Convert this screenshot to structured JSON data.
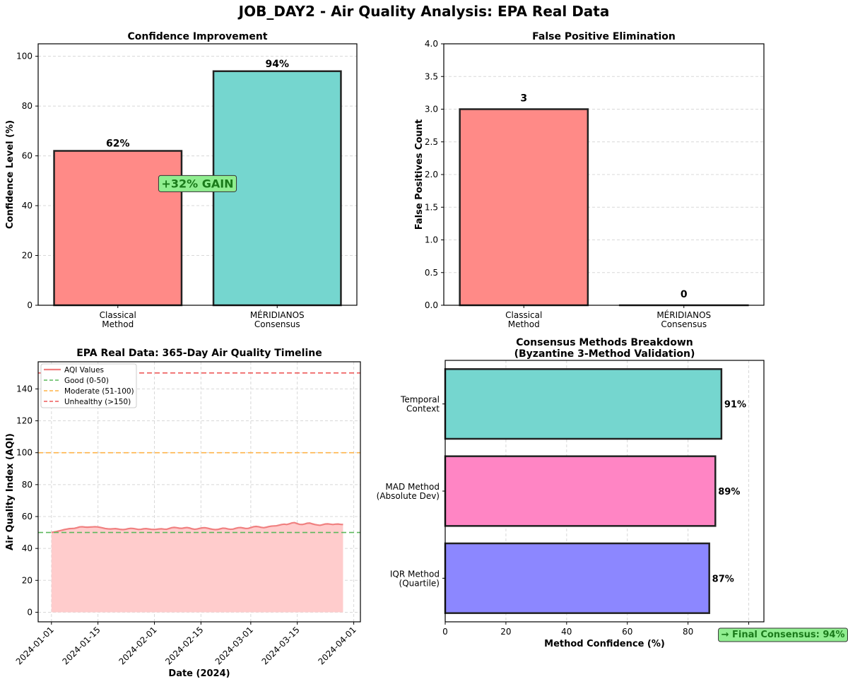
{
  "figure_title": "JOB_DAY2 - Air Quality Analysis: EPA Real Data",
  "chart_data": [
    {
      "type": "bar",
      "title": "Confidence Improvement",
      "ylabel": "Confidence Level (%)",
      "xlabel": "",
      "categories": [
        "Classical\nMethod",
        "MÉRIDIANOS\nConsensus"
      ],
      "values": [
        62,
        94
      ],
      "value_labels": [
        "62%",
        "94%"
      ],
      "colors": [
        "#ff8a87",
        "#75d6cf"
      ],
      "ylim": [
        0,
        105
      ],
      "yticks": [
        0,
        20,
        40,
        60,
        80,
        100
      ],
      "annotation": "+32% GAIN",
      "grid": true
    },
    {
      "type": "bar",
      "title": "False Positive Elimination",
      "ylabel": "False Positives Count",
      "xlabel": "",
      "categories": [
        "Classical\nMethod",
        "MÉRIDIANOS\nConsensus"
      ],
      "values": [
        3,
        0
      ],
      "value_labels": [
        "3",
        "0"
      ],
      "colors": [
        "#ff8a87",
        "#75d6cf"
      ],
      "ylim": [
        0,
        4
      ],
      "yticks": [
        "0.0",
        "0.5",
        "1.0",
        "1.5",
        "2.0",
        "2.5",
        "3.0",
        "3.5",
        "4.0"
      ],
      "grid": true
    },
    {
      "type": "area",
      "title": "EPA Real Data: 365-Day Air Quality Timeline",
      "xlabel": "Date (2024)",
      "ylabel": "Air Quality Index (AQI)",
      "x_start": "2024-01-01",
      "xlim": [
        "2023-12-28",
        "2024-04-03"
      ],
      "xticks": [
        "2024-01-01",
        "2024-01-15",
        "2024-02-01",
        "2024-02-15",
        "2024-03-01",
        "2024-03-15",
        "2024-04-01"
      ],
      "ylim": [
        -6,
        157
      ],
      "yticks": [
        0,
        20,
        40,
        60,
        80,
        100,
        120,
        140
      ],
      "series": [
        {
          "name": "AQI Values",
          "color": "#f08080",
          "values": [
            50.0,
            50.3,
            50.6,
            51.0,
            51.4,
            51.8,
            52.1,
            52.4,
            52.5,
            52.6,
            53.0,
            53.5,
            53.6,
            53.4,
            53.3,
            53.4,
            53.5,
            53.6,
            53.5,
            53.2,
            52.9,
            52.5,
            52.3,
            52.2,
            52.3,
            52.4,
            52.2,
            51.9,
            51.8,
            52.0,
            52.4,
            52.6,
            52.5,
            52.2,
            51.9,
            52.0,
            52.3,
            52.4,
            52.2,
            52.0,
            51.9,
            52.0,
            52.2,
            52.3,
            52.1,
            52.0,
            52.5,
            53.0,
            53.2,
            53.0,
            52.7,
            52.6,
            52.9,
            53.1,
            52.8,
            52.3,
            52.0,
            52.2,
            52.6,
            52.9,
            53.0,
            52.7,
            52.3,
            52.0,
            51.8,
            51.9,
            52.3,
            52.7,
            52.6,
            52.2,
            52.0,
            52.1,
            52.6,
            53.0,
            53.1,
            52.8,
            52.5,
            52.6,
            53.1,
            53.6,
            53.8,
            53.6,
            53.2,
            53.0,
            53.3,
            53.7,
            54.0,
            54.1,
            54.2,
            54.6,
            55.0,
            55.2,
            55.0,
            55.4,
            56.0,
            56.2,
            55.6,
            55.1,
            55.0,
            55.3,
            55.8,
            55.9,
            55.4,
            55.0,
            54.7,
            54.5,
            54.9,
            55.3,
            55.4,
            55.2,
            55.0,
            55.2,
            55.3,
            55.1,
            55.0
          ]
        }
      ],
      "reference_lines": [
        {
          "name": "Good (0-50)",
          "y": 50,
          "color": "#5cb85c"
        },
        {
          "name": "Moderate (51-100)",
          "y": 100,
          "color": "#ffb347"
        },
        {
          "name": "Unhealthy (>150)",
          "y": 150,
          "color": "#ee5a5a"
        }
      ],
      "fill_color": "#ffcccc",
      "legend_position": "upper-left",
      "grid": true
    },
    {
      "type": "bar",
      "orientation": "horizontal",
      "title": "Consensus Methods Breakdown\n(Byzantine 3-Method Validation)",
      "xlabel": "Method Confidence (%)",
      "ylabel": "",
      "categories": [
        "IQR Method\n(Quartile)",
        "MAD Method\n(Absolute Dev)",
        "Temporal\nContext"
      ],
      "values": [
        87,
        89,
        91
      ],
      "value_labels": [
        "87%",
        "89%",
        "91%"
      ],
      "colors": [
        "#8c87ff",
        "#ff85c4",
        "#75d6cf"
      ],
      "xlim": [
        0,
        105
      ],
      "xticks": [
        0,
        20,
        40,
        60,
        80,
        100
      ],
      "annotation": "→ Final Consensus: 94%",
      "grid": true
    }
  ]
}
